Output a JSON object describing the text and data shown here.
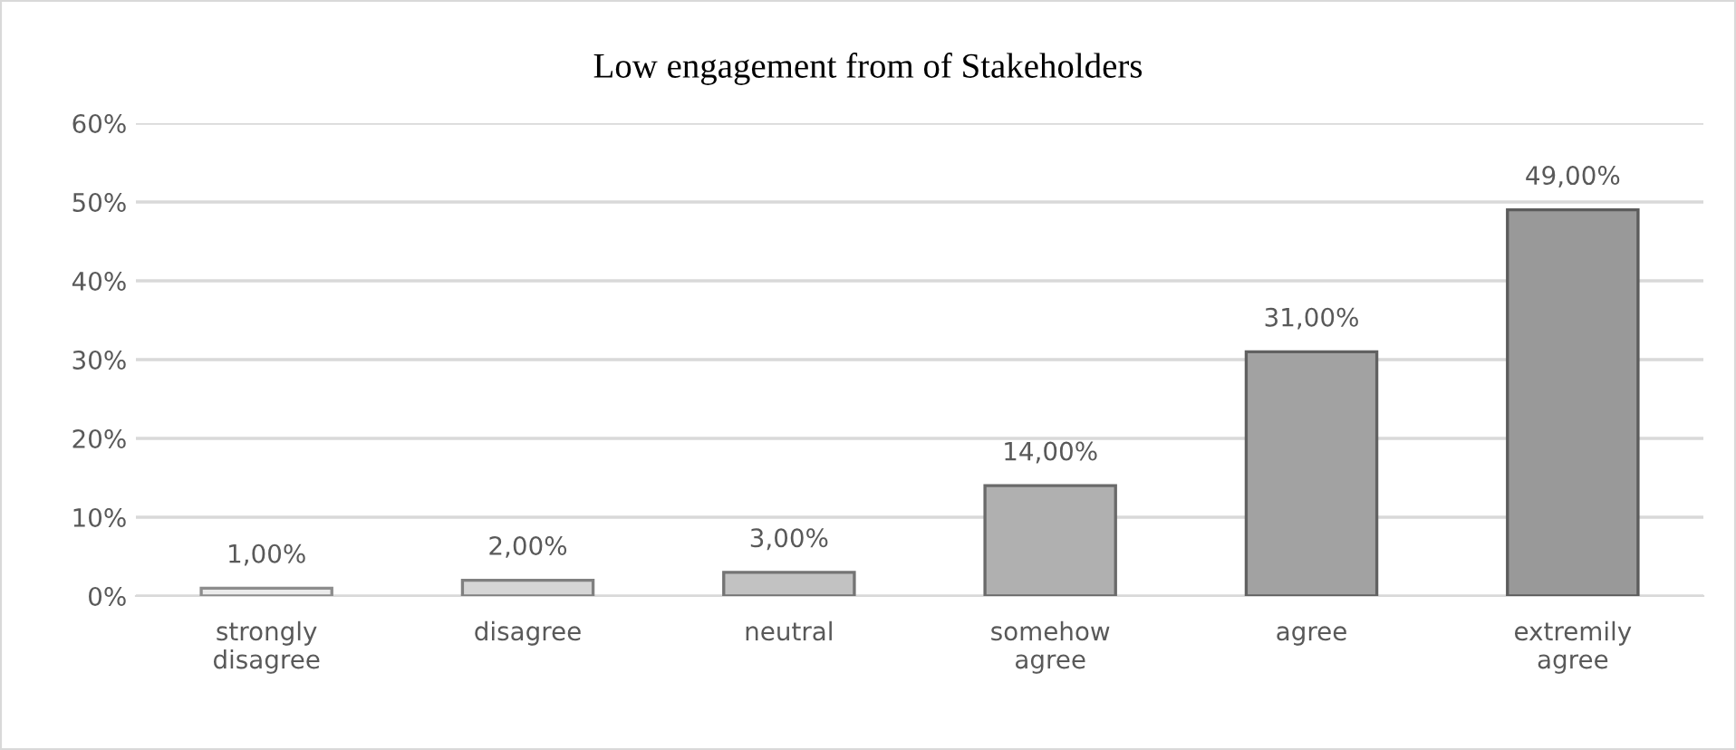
{
  "chart_data": {
    "type": "bar",
    "title": "Low engagement from of Stakeholders",
    "categories": [
      "strongly disagree",
      "disagree",
      "neutral",
      "somehow agree",
      "agree",
      "extremily agree"
    ],
    "values": [
      1,
      2,
      3,
      14,
      31,
      49
    ],
    "value_labels": [
      "1,00%",
      "2,00%",
      "3,00%",
      "14,00%",
      "31,00%",
      "49,00%"
    ],
    "colors": [
      "#ebebeb",
      "#d6d6d6",
      "#c2c2c2",
      "#b0b0b0",
      "#a2a2a2",
      "#999999"
    ],
    "ylim": [
      0,
      60
    ],
    "yticks": [
      {
        "value": 0,
        "label": "0%"
      },
      {
        "value": 10,
        "label": "10%"
      },
      {
        "value": 20,
        "label": "20%"
      },
      {
        "value": 30,
        "label": "30%"
      },
      {
        "value": 40,
        "label": "40%"
      },
      {
        "value": 50,
        "label": "50%"
      },
      {
        "value": 60,
        "label": "60%"
      }
    ],
    "grid": "y",
    "legend": false
  }
}
